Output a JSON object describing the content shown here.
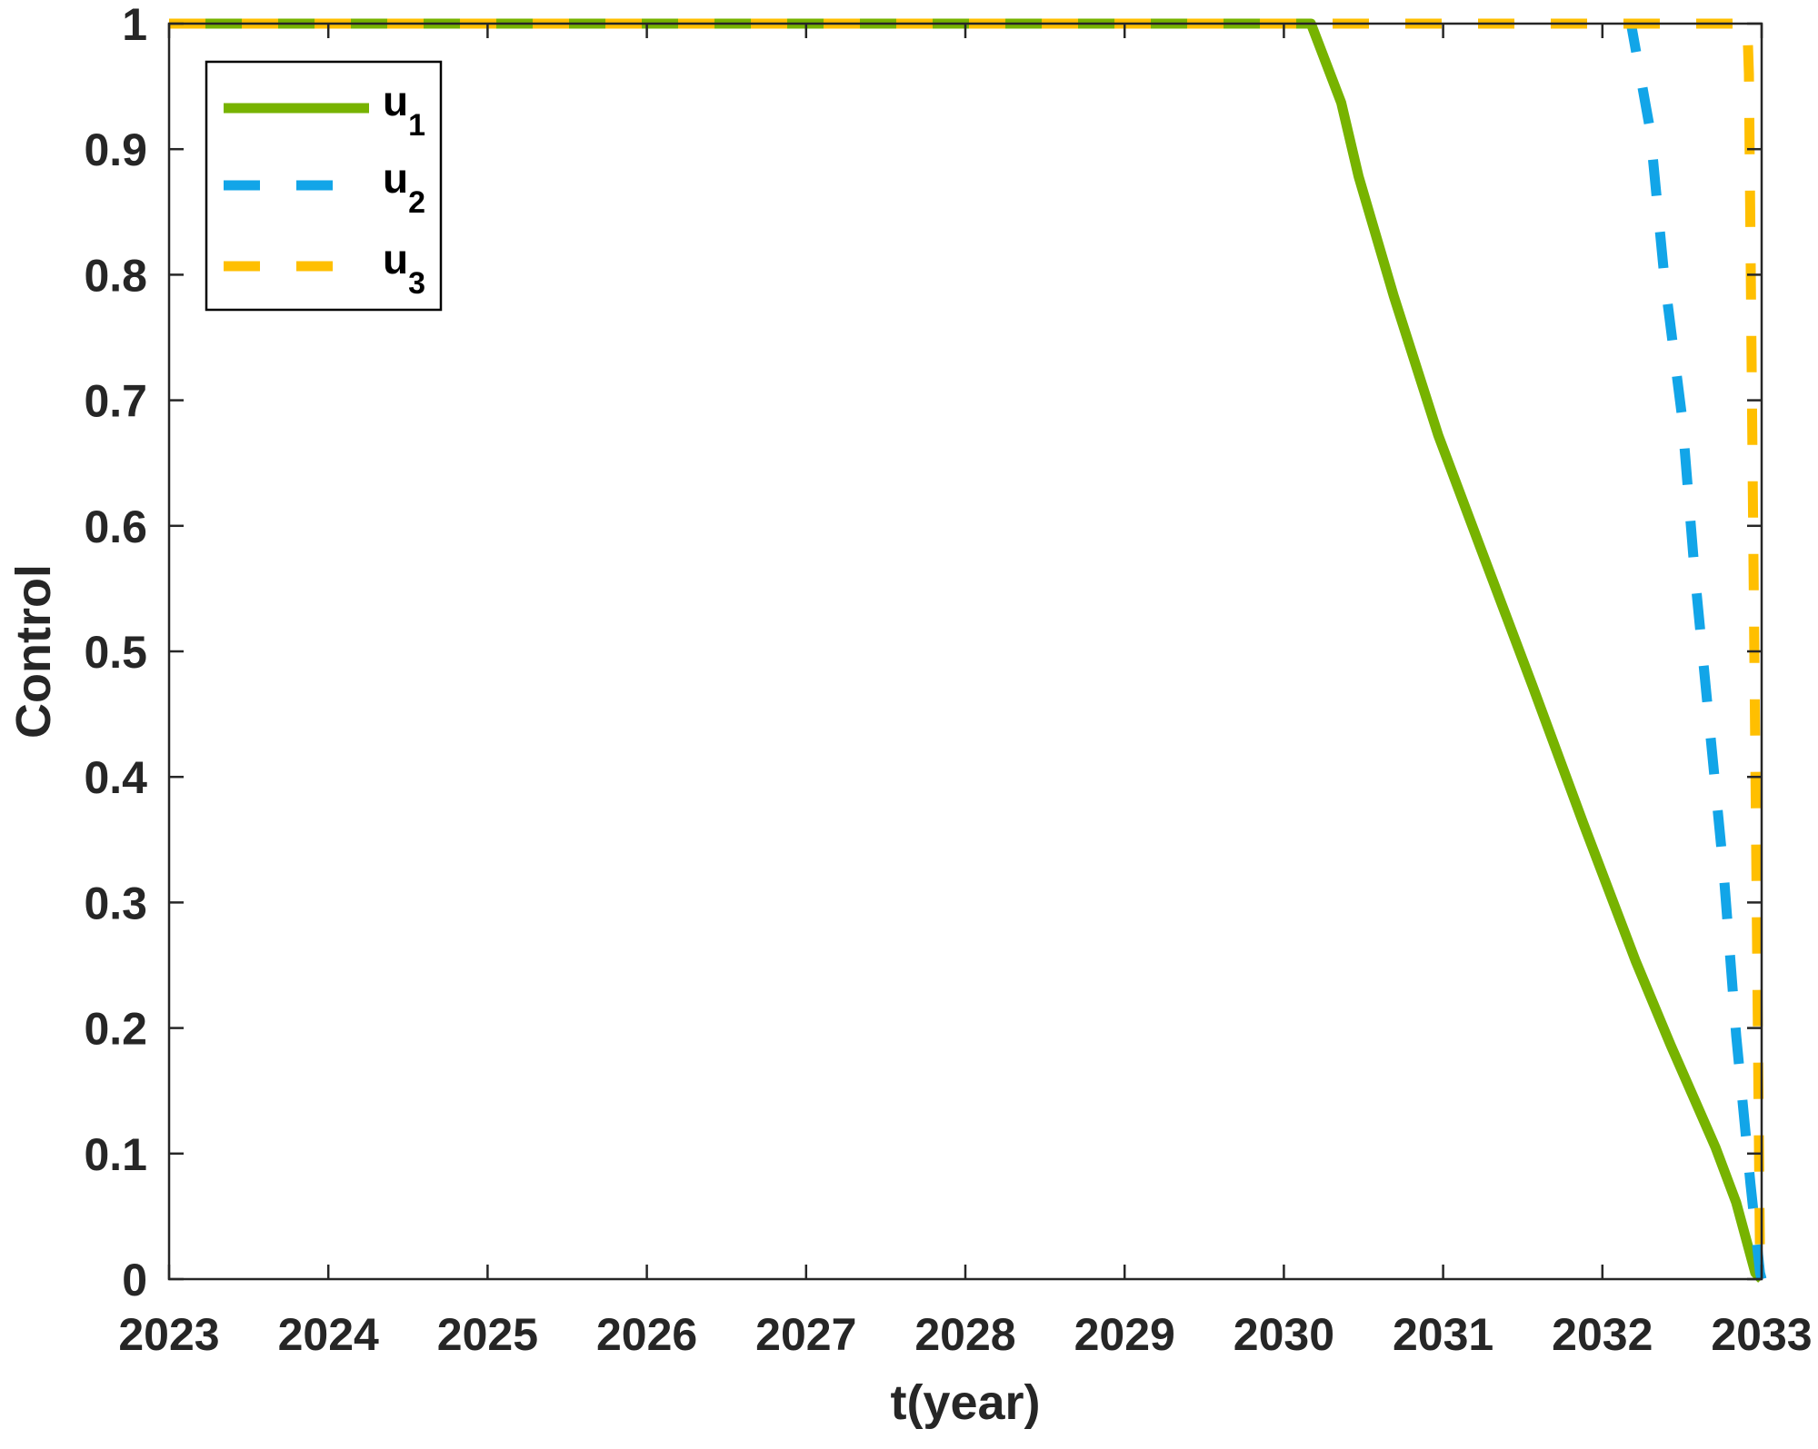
{
  "chart_data": {
    "type": "line",
    "title": "",
    "xlabel": "t(year)",
    "ylabel": "Control",
    "xlim": [
      2023,
      2033
    ],
    "ylim": [
      0,
      1
    ],
    "xticks": [
      2023,
      2024,
      2025,
      2026,
      2027,
      2028,
      2029,
      2030,
      2031,
      2032,
      2033
    ],
    "yticks": [
      0,
      0.1,
      0.2,
      0.3,
      0.4,
      0.5,
      0.6,
      0.7,
      0.8,
      0.9,
      1
    ],
    "ytick_labels": [
      "0",
      "0.1",
      "0.2",
      "0.3",
      "0.4",
      "0.5",
      "0.6",
      "0.7",
      "0.8",
      "0.9",
      "1"
    ],
    "grid": false,
    "legend_placement": "top-left",
    "series": [
      {
        "name": "u1",
        "label_base": "u",
        "label_sub": "1",
        "color": "#77b300",
        "style": "solid",
        "x": [
          2023,
          2030.17,
          2030.36,
          2030.47,
          2030.69,
          2030.97,
          2031.23,
          2031.56,
          2031.88,
          2032.21,
          2032.43,
          2032.71,
          2032.84,
          2032.96,
          2033
        ],
        "y": [
          1,
          1,
          0.937,
          0.878,
          0.783,
          0.672,
          0.584,
          0.473,
          0.363,
          0.253,
          0.186,
          0.105,
          0.061,
          0.005,
          0
        ]
      },
      {
        "name": "u2",
        "label_base": "u",
        "label_sub": "2",
        "color": "#12a5e8",
        "style": "dashed",
        "x": [
          2023,
          2032.18,
          2032.3,
          2032.39,
          2032.5,
          2032.58,
          2032.67,
          2032.76,
          2032.84,
          2032.93,
          2032.99,
          2033
        ],
        "y": [
          1,
          1,
          0.915,
          0.797,
          0.687,
          0.562,
          0.444,
          0.326,
          0.194,
          0.076,
          0.005,
          0
        ]
      },
      {
        "name": "u3",
        "label_base": "u",
        "label_sub": "3",
        "color": "#ffbf00",
        "style": "dashed",
        "x": [
          2023,
          2032.91,
          2032.92,
          2032.99,
          2033
        ],
        "y": [
          1,
          1,
          0.96,
          0.017,
          0
        ]
      }
    ]
  }
}
